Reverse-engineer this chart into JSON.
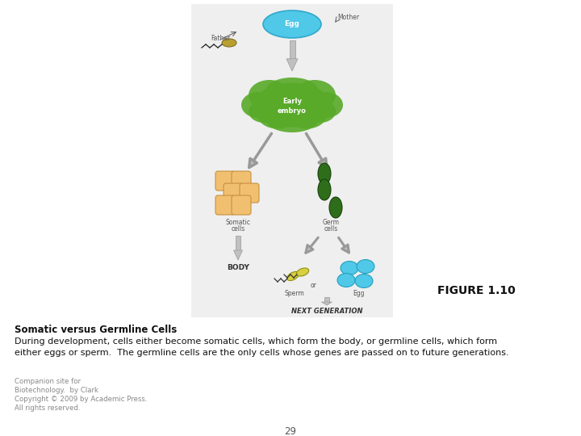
{
  "title": "FIGURE 1.10",
  "subtitle_bold": "Somatic versus Germline Cells",
  "subtitle_line1": "During development, cells either become somatic cells, which form the body, or germline cells, which form",
  "subtitle_line2": "either eggs or sperm.  The germline cells are the only cells whose genes are passed on to future generations.",
  "footer_line1": "Companion site for",
  "footer_line2": "Biotechnology.  by Clark",
  "footer_line3": "Copyright © 2009 by Academic Press.",
  "footer_line4": "All rights reserved.",
  "page_number": "29",
  "bg_color": "#ffffff",
  "diagram_bg": "#efefef",
  "egg_color": "#50c8e8",
  "embryo_color": "#58aa28",
  "somatic_color": "#f0c070",
  "germ_color": "#2e6e1a",
  "sperm_body_color": "#d8d040",
  "arrow_fill": "#c0c0c0",
  "arrow_edge": "#999999",
  "label_color": "#555555",
  "body_text_color": "#333333"
}
